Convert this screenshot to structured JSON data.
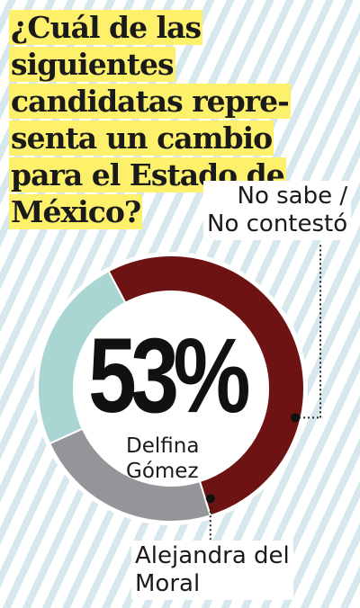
{
  "title": "¿Cuál de las siguientes candidatas representa un cambio para el Estado de México?",
  "title_lines": [
    "¿Cuál de las siguientes",
    "candidatas repre-",
    "senta un cambio",
    "para el Estado de",
    "México?"
  ],
  "chart_data": {
    "type": "pie",
    "donut": true,
    "slices": [
      {
        "label": "Delfina Gómez",
        "value": 53,
        "color": "#6e1313"
      },
      {
        "label": "No sabe / No contestó",
        "value": 23,
        "color": "#939598"
      },
      {
        "label": "Alejandra del Moral",
        "value": 24,
        "color": "#a9d6d3"
      }
    ],
    "highlight_label": "53%"
  },
  "labels": {
    "no_sabe": [
      "No sabe /",
      "No contestó"
    ],
    "alejandra": [
      "Alejandra del",
      "Moral"
    ],
    "delfina": [
      "Delfina",
      "Gómez"
    ]
  },
  "colors": {
    "highlight": "#fdf06a",
    "stripe": "#d6e7ee"
  }
}
